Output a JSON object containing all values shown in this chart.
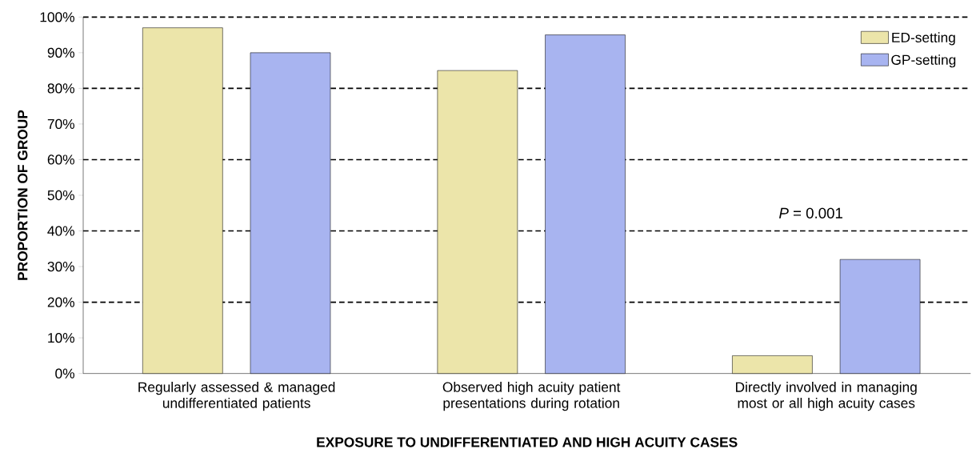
{
  "chart_data": {
    "type": "bar",
    "xlabel": "EXPOSURE TO UNDIFFERENTIATED AND HIGH ACUITY CASES",
    "ylabel": "PROPORTION OF GROUP",
    "categories": [
      "Regularly assessed & managed undifferentiated patients",
      "Observed high acuity patient presentations during rotation",
      "Directly involved in managing most or all high acuity cases"
    ],
    "series": [
      {
        "name": "ED-setting",
        "color": "#ece5aa",
        "values": [
          97,
          85,
          5
        ]
      },
      {
        "name": "GP-setting",
        "color": "#a8b4f0",
        "values": [
          90,
          95,
          32
        ]
      }
    ],
    "ylim": [
      0,
      100
    ],
    "yticks": [
      {
        "value": 0,
        "label": "0%"
      },
      {
        "value": 10,
        "label": "10%"
      },
      {
        "value": 20,
        "label": "20%"
      },
      {
        "value": 30,
        "label": "30%"
      },
      {
        "value": 40,
        "label": "40%"
      },
      {
        "value": 50,
        "label": "50%"
      },
      {
        "value": 60,
        "label": "60%"
      },
      {
        "value": 70,
        "label": "70%"
      },
      {
        "value": 80,
        "label": "80%"
      },
      {
        "value": 90,
        "label": "90%"
      },
      {
        "value": 100,
        "label": "100%"
      }
    ],
    "grid": "y",
    "annotations": [
      "*P* = 0.001"
    ],
    "legend": "top right"
  }
}
